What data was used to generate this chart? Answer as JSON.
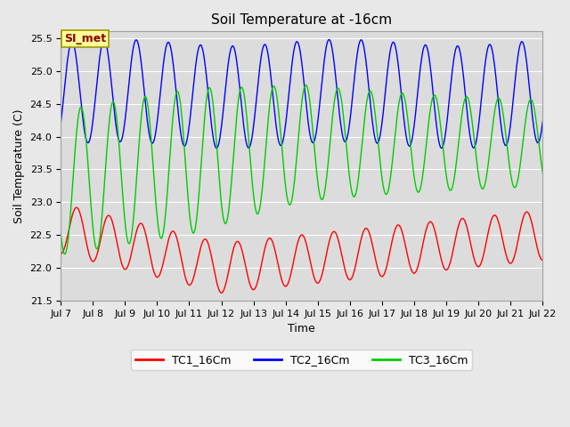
{
  "title": "Soil Temperature at -16cm",
  "xlabel": "Time",
  "ylabel": "Soil Temperature (C)",
  "ylim": [
    21.5,
    25.6
  ],
  "xlim_days": [
    7,
    22
  ],
  "x_tick_labels": [
    "Jul 7",
    "Jul 8",
    "Jul 9",
    "Jul 10",
    "Jul 11",
    "Jul 12",
    "Jul 13",
    "Jul 14",
    "Jul 15",
    "Jul 16",
    "Jul 17",
    "Jul 18",
    "Jul 19",
    "Jul 20",
    "Jul 21",
    "Jul 22"
  ],
  "annotation_text": "SI_met",
  "annotation_color": "#8B0000",
  "annotation_bg": "#FFFF99",
  "annotation_border": "#9B9B00",
  "colors": {
    "TC1": "#FF0000",
    "TC2": "#0000FF",
    "TC3": "#00CC00"
  },
  "legend_labels": [
    "TC1_16Cm",
    "TC2_16Cm",
    "TC3_16Cm"
  ],
  "background_color": "#DCDCDC",
  "fig_bg_color": "#E8E8E8",
  "title_fontsize": 11,
  "axis_fontsize": 9,
  "tick_fontsize": 8
}
